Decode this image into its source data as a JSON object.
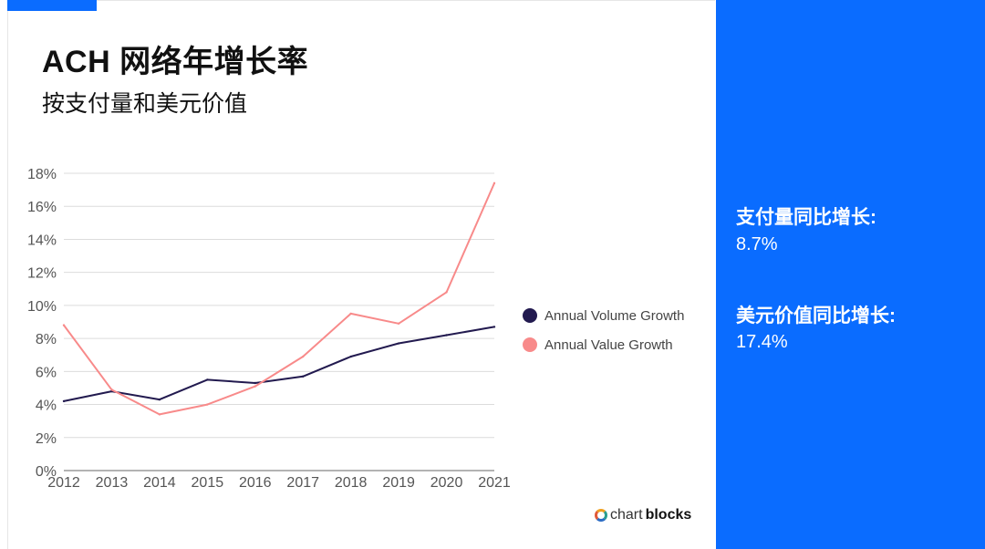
{
  "header": {
    "title": "ACH 网络年增长率",
    "subtitle": "按支付量和美元价值"
  },
  "brand": {
    "light": "chart",
    "bold": "blocks"
  },
  "stats": [
    {
      "label": "支付量同比增长:",
      "value": "8.7%"
    },
    {
      "label": "美元价值同比增长:",
      "value": "17.4%"
    }
  ],
  "colors": {
    "accent": "#0a6cff",
    "volume": "#221a4f",
    "value": "#f88a8a",
    "grid": "#dcdcdc"
  },
  "chart_data": {
    "type": "line",
    "x": [
      "2012",
      "2013",
      "2014",
      "2015",
      "2016",
      "2017",
      "2018",
      "2019",
      "2020",
      "2021"
    ],
    "yticks": [
      "0%",
      "2%",
      "4%",
      "6%",
      "8%",
      "10%",
      "12%",
      "14%",
      "16%",
      "18%"
    ],
    "ylim": [
      0,
      18
    ],
    "grid": true,
    "legend_position": "right",
    "series": [
      {
        "name": "Annual Volume Growth",
        "values": [
          4.2,
          4.8,
          4.3,
          5.5,
          5.3,
          5.7,
          6.9,
          7.7,
          8.2,
          8.7
        ]
      },
      {
        "name": "Annual Value Growth",
        "values": [
          8.8,
          4.9,
          3.4,
          4.0,
          5.1,
          6.9,
          9.5,
          8.9,
          10.8,
          17.4
        ]
      }
    ]
  }
}
